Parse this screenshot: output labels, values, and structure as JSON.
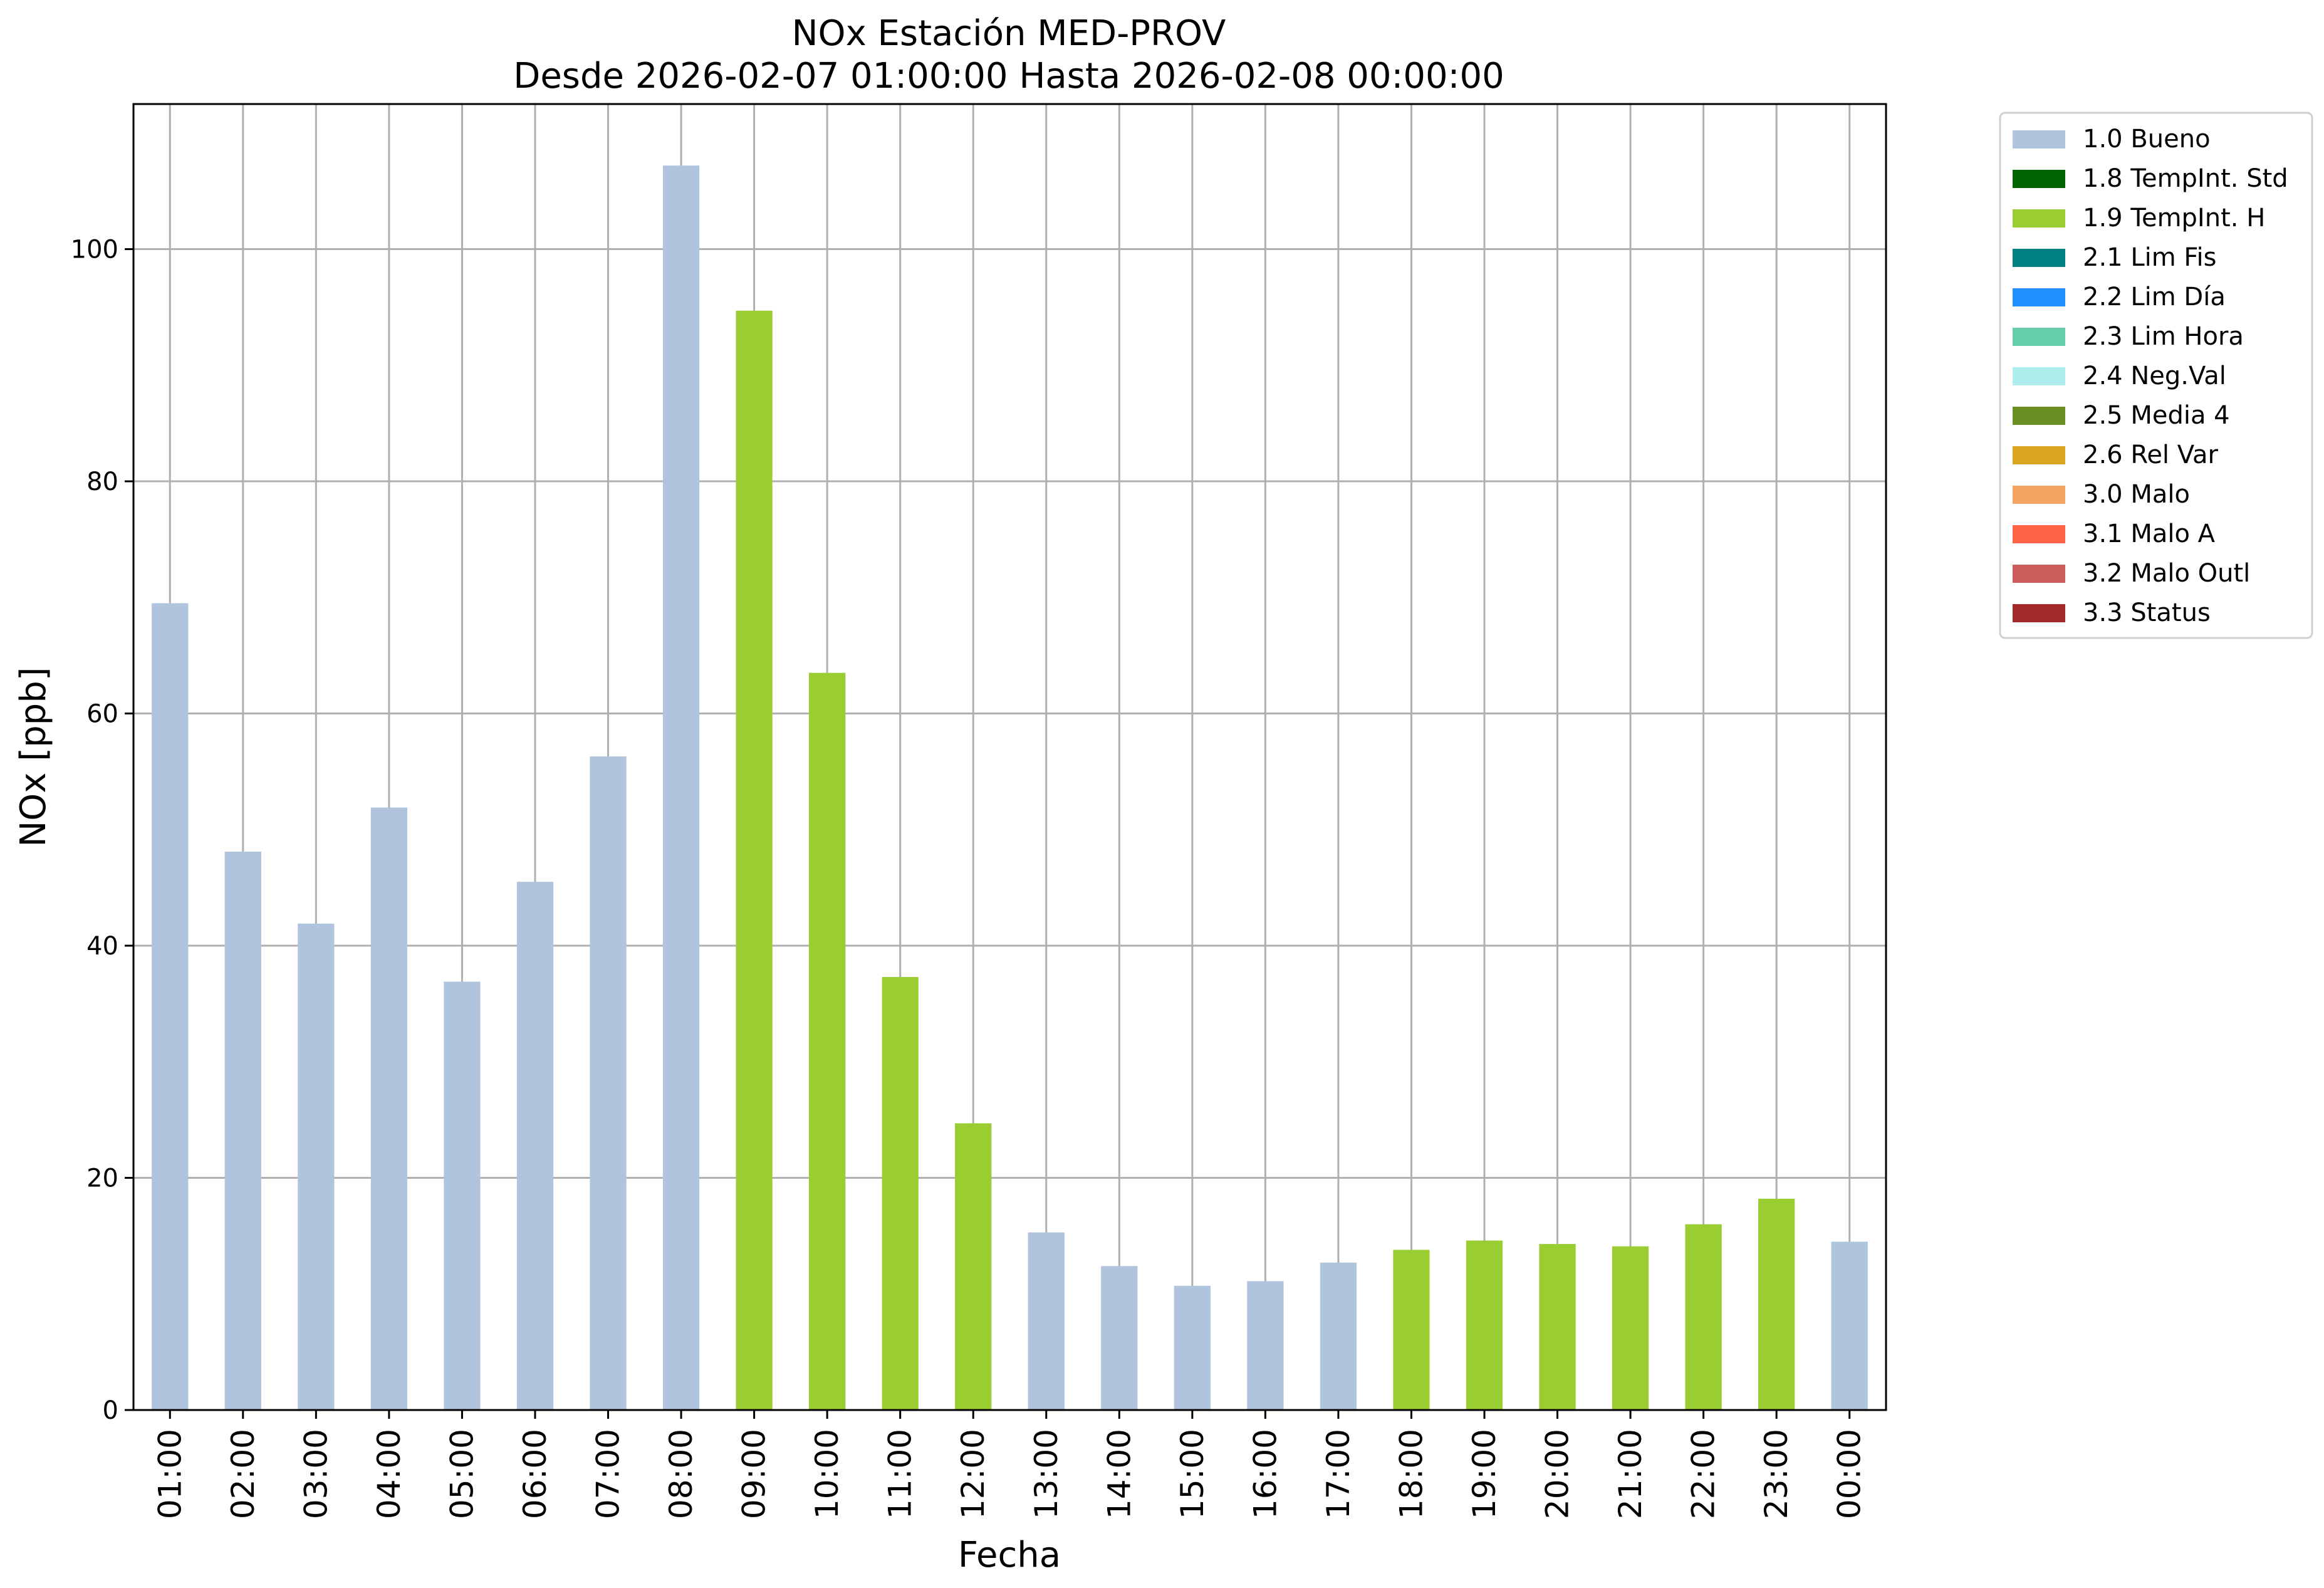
{
  "chart_data": {
    "type": "bar",
    "title": [
      "NOx Estación MED-PROV",
      "Desde 2026-02-07 01:00:00 Hasta 2026-02-08 00:00:00"
    ],
    "xlabel": "Fecha",
    "ylabel": "NOx [ppb]",
    "ylim": [
      0,
      112.5
    ],
    "yticks": [
      0,
      20,
      40,
      60,
      80,
      100
    ],
    "grid": true,
    "legend_position": "outside-top-right",
    "categories": [
      "01:00",
      "02:00",
      "03:00",
      "04:00",
      "05:00",
      "06:00",
      "07:00",
      "08:00",
      "09:00",
      "10:00",
      "11:00",
      "12:00",
      "13:00",
      "14:00",
      "15:00",
      "16:00",
      "17:00",
      "18:00",
      "19:00",
      "20:00",
      "21:00",
      "22:00",
      "23:00",
      "00:00"
    ],
    "values": [
      69.5,
      48.1,
      41.9,
      51.9,
      36.9,
      45.5,
      56.3,
      107.2,
      94.7,
      63.5,
      37.3,
      24.7,
      15.3,
      12.4,
      10.7,
      11.1,
      12.7,
      13.8,
      14.6,
      14.3,
      14.1,
      16.0,
      18.2,
      14.5
    ],
    "flags": [
      "1.0",
      "1.0",
      "1.0",
      "1.0",
      "1.0",
      "1.0",
      "1.0",
      "1.0",
      "1.9",
      "1.9",
      "1.9",
      "1.9",
      "1.0",
      "1.0",
      "1.0",
      "1.0",
      "1.0",
      "1.9",
      "1.9",
      "1.9",
      "1.9",
      "1.9",
      "1.9",
      "1.0"
    ],
    "legend": [
      {
        "code": "1.0",
        "label": "1.0 Bueno",
        "color": "#B0C4DE"
      },
      {
        "code": "1.8",
        "label": "1.8 TempInt. Std",
        "color": "#006400"
      },
      {
        "code": "1.9",
        "label": "1.9 TempInt. H",
        "color": "#9ACD32"
      },
      {
        "code": "2.1",
        "label": "2.1 Lim Fis",
        "color": "#008080"
      },
      {
        "code": "2.2",
        "label": "2.2 Lim Día",
        "color": "#1E90FF"
      },
      {
        "code": "2.3",
        "label": "2.3 Lim Hora",
        "color": "#66CDAA"
      },
      {
        "code": "2.4",
        "label": "2.4 Neg.Val",
        "color": "#AFEEEE"
      },
      {
        "code": "2.5",
        "label": "2.5 Media 4",
        "color": "#6B8E23"
      },
      {
        "code": "2.6",
        "label": "2.6 Rel Var",
        "color": "#DAA520"
      },
      {
        "code": "3.0",
        "label": "3.0 Malo",
        "color": "#F4A460"
      },
      {
        "code": "3.1",
        "label": "3.1 Malo A",
        "color": "#FF6347"
      },
      {
        "code": "3.2",
        "label": "3.2 Malo Outl",
        "color": "#CD5C5C"
      },
      {
        "code": "3.3",
        "label": "3.3 Status",
        "color": "#A52A2A"
      }
    ]
  }
}
